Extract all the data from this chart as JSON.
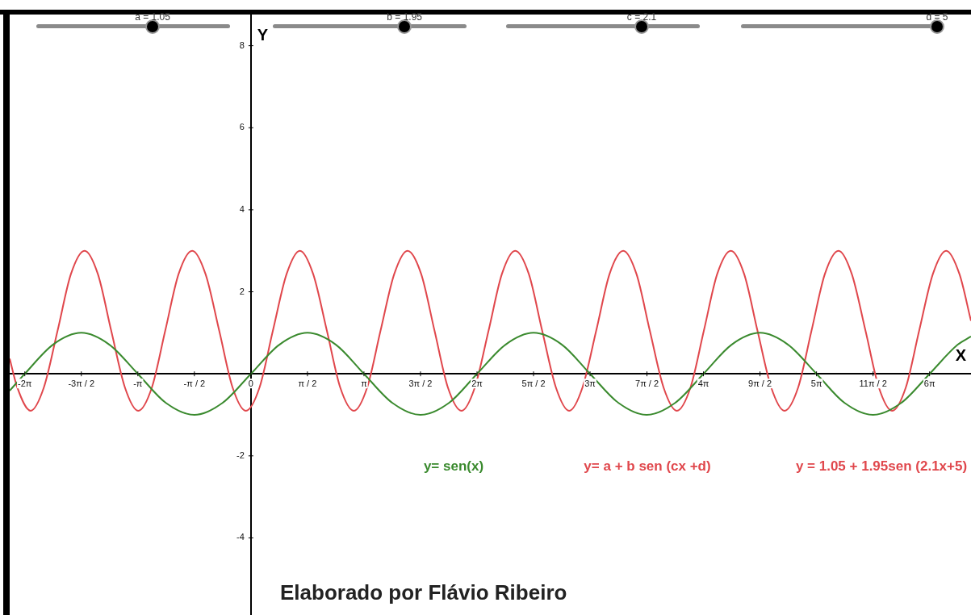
{
  "chart_data": {
    "type": "line",
    "xlabel": "X",
    "ylabel": "Y",
    "xlim": [
      -6.7,
      20
    ],
    "ylim": [
      -5.88,
      8.76
    ],
    "xticks": [
      {
        "value": -6.28,
        "label": "-2π"
      },
      {
        "value": -4.71,
        "label": "-3π / 2"
      },
      {
        "value": -3.14,
        "label": "-π"
      },
      {
        "value": -1.57,
        "label": "-π / 2"
      },
      0,
      {
        "value": 1.57,
        "label": "π / 2"
      },
      {
        "value": 3.14,
        "label": "π"
      },
      {
        "value": 4.71,
        "label": "3π / 2"
      },
      {
        "value": 6.28,
        "label": "2π"
      },
      {
        "value": 7.85,
        "label": "5π / 2"
      },
      {
        "value": 9.42,
        "label": "3π"
      },
      {
        "value": 11,
        "label": "7π / 2"
      },
      {
        "value": 12.57,
        "label": "4π"
      },
      {
        "value": 14.14,
        "label": "9π / 2"
      },
      {
        "value": 15.71,
        "label": "5π"
      },
      {
        "value": 17.28,
        "label": "11π / 2"
      },
      {
        "value": 18.85,
        "label": "6π"
      }
    ],
    "yticks": [
      -4,
      -2,
      2,
      4,
      6,
      8
    ],
    "grid": false,
    "marker": "none",
    "line_style": "solid",
    "series": [
      {
        "name": "y= sen(x)",
        "color": "#3a8a2e",
        "x": [
          -6.7,
          -6.28,
          -5.5,
          -4.71,
          -3.93,
          -3.14,
          -2.36,
          -1.57,
          -0.79,
          0,
          0.79,
          1.57,
          2.36,
          3.14,
          3.93,
          4.71,
          5.5,
          6.28,
          7.07,
          7.85,
          8.64,
          9.42,
          10.21,
          10.99,
          11.78,
          12.57,
          13.35,
          14.14,
          14.92,
          15.71,
          16.49,
          17.28,
          18.06,
          18.85,
          19.63,
          20
        ],
        "values": [
          -0.41,
          0,
          0.71,
          1,
          0.71,
          0,
          -0.71,
          -1,
          -0.71,
          0,
          0.71,
          1,
          0.71,
          0,
          -0.71,
          -1,
          -0.71,
          0,
          0.71,
          1,
          0.71,
          0,
          -0.71,
          -1,
          -0.71,
          0,
          0.71,
          1,
          0.71,
          0,
          -0.71,
          -1,
          -0.71,
          0,
          0.71,
          0.91
        ]
      },
      {
        "name": "y= a + b sen (cx +d)",
        "color": "#e0474c",
        "x": [
          -6.7,
          -6.49,
          -6.12,
          -5.75,
          -5.37,
          -5,
          -4.62,
          -4.25,
          -3.88,
          -3.5,
          -3.13,
          -2.75,
          -2.38,
          -2.01,
          -1.63,
          -1.26,
          -0.88,
          -0.51,
          -0.14,
          0.24,
          0.61,
          0.99,
          1.36,
          1.73,
          2.11,
          2.48,
          2.86,
          3.23,
          3.6,
          3.98,
          4.35,
          4.73,
          5.1,
          5.47,
          5.85,
          6.22,
          6.6,
          6.97,
          7.34,
          7.72,
          8.09,
          8.47,
          8.84,
          9.21,
          9.59,
          9.96,
          10.34,
          10.71,
          11.08,
          11.46,
          11.83,
          12.21,
          12.58,
          12.95,
          13.33,
          13.7,
          14.07,
          14.45,
          14.82,
          15.2,
          15.57,
          15.94,
          16.32,
          16.69,
          17.07,
          17.44,
          17.81,
          18.19,
          18.56,
          18.94,
          19.31,
          19.68,
          20
        ],
        "values": [
          0.37,
          -0.33,
          -0.9,
          -0.33,
          1.05,
          2.43,
          3,
          2.43,
          1.05,
          -0.33,
          -0.9,
          -0.33,
          1.05,
          2.43,
          3,
          2.43,
          1.05,
          -0.33,
          -0.9,
          -0.33,
          1.05,
          2.43,
          3,
          2.43,
          1.05,
          -0.33,
          -0.9,
          -0.33,
          1.05,
          2.43,
          3,
          2.43,
          1.05,
          -0.33,
          -0.9,
          -0.33,
          1.05,
          2.43,
          3,
          2.43,
          1.05,
          -0.33,
          -0.9,
          -0.33,
          1.05,
          2.43,
          3,
          2.43,
          1.05,
          -0.33,
          -0.9,
          -0.33,
          1.05,
          2.43,
          3,
          2.43,
          1.05,
          -0.33,
          -0.9,
          -0.33,
          1.05,
          2.43,
          3,
          2.43,
          1.05,
          -0.33,
          -0.9,
          -0.33,
          1.05,
          2.43,
          3,
          2.43,
          1.29
        ]
      }
    ],
    "annotations": [
      "y = 1.05 + 1.95sen (2.1x+5)",
      "a = 1.05",
      "b = 1.95",
      "c = 2.1",
      "d = 5",
      "Elaborado por Flávio Ribeiro"
    ]
  }
}
